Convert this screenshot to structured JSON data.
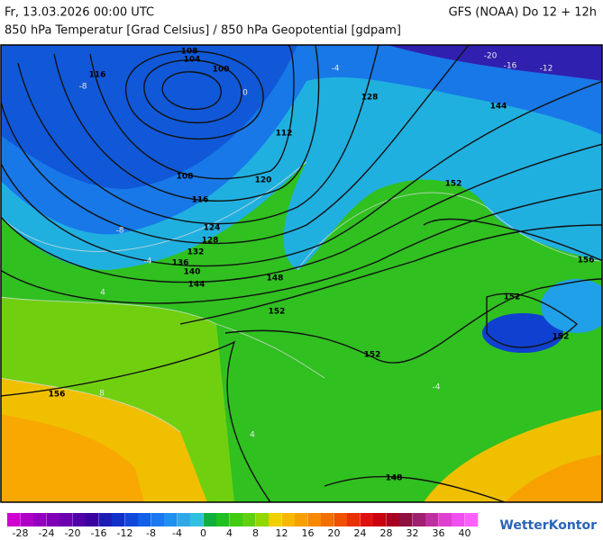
{
  "header": {
    "left": "Fr, 13.03.2026 00:00 UTC",
    "right": "GFS (NOAA) Do 12 + 12h",
    "subtitle": "850 hPa Temperatur [Grad Celsius] / 850 hPa Geopotential [gdpam]"
  },
  "map": {
    "contour_labels": [
      108,
      104,
      100,
      116,
      112,
      128,
      120,
      108,
      116,
      124,
      128,
      132,
      136,
      140,
      144,
      148,
      152,
      152,
      152,
      152,
      156,
      156,
      148,
      144,
      152
    ],
    "isotherm_labels": [
      -20,
      -16,
      -12,
      -8,
      -4,
      0,
      -8,
      -4,
      4,
      8,
      4,
      -4
    ]
  },
  "legend": {
    "colors": [
      "#d000d0",
      "#b000c8",
      "#9400c0",
      "#8000b8",
      "#6a00b0",
      "#5000a8",
      "#3a00a0",
      "#1c1cb4",
      "#1030c8",
      "#1048dc",
      "#1060e8",
      "#1a78f0",
      "#2090f0",
      "#30a8e8",
      "#30c0e0",
      "#10b040",
      "#20c020",
      "#40cc10",
      "#60d010",
      "#90d800",
      "#f0d000",
      "#f8b800",
      "#f8a000",
      "#f88800",
      "#f07000",
      "#f05000",
      "#e83000",
      "#e01010",
      "#c80010",
      "#a80020",
      "#901040",
      "#a02070",
      "#c030a0",
      "#e040d0",
      "#f050f0",
      "#ff60ff"
    ],
    "ticks": [
      -28,
      -24,
      -20,
      -16,
      -12,
      -8,
      -4,
      0,
      4,
      8,
      12,
      16,
      20,
      24,
      28,
      32,
      36,
      40
    ]
  },
  "brand": "WetterKontor"
}
